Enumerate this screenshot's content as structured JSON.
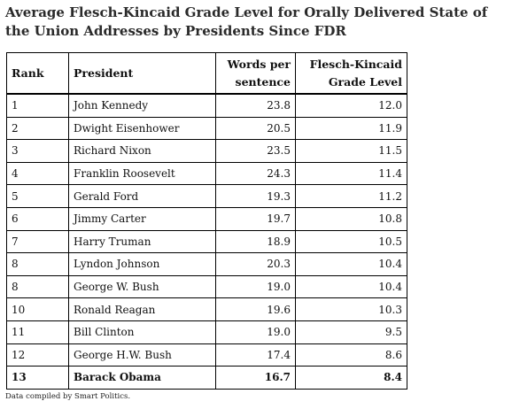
{
  "title": "Average Flesch-Kincaid Grade Level for Orally Delivered State of the Union Addresses by Presidents Since FDR",
  "headers": {
    "rank": "Rank",
    "president": "President",
    "words": "Words per sentence",
    "fk": "Flesch-Kincaid Grade Level"
  },
  "rows": [
    {
      "rank": "1",
      "president": "John Kennedy",
      "words": "23.8",
      "fk": "12.0"
    },
    {
      "rank": "2",
      "president": "Dwight Eisenhower",
      "words": "20.5",
      "fk": "11.9"
    },
    {
      "rank": "3",
      "president": "Richard Nixon",
      "words": "23.5",
      "fk": "11.5"
    },
    {
      "rank": "4",
      "president": "Franklin Roosevelt",
      "words": "24.3",
      "fk": "11.4"
    },
    {
      "rank": "5",
      "president": "Gerald Ford",
      "words": "19.3",
      "fk": "11.2"
    },
    {
      "rank": "6",
      "president": "Jimmy Carter",
      "words": "19.7",
      "fk": "10.8"
    },
    {
      "rank": "7",
      "president": "Harry Truman",
      "words": "18.9",
      "fk": "10.5"
    },
    {
      "rank": "8",
      "president": "Lyndon Johnson",
      "words": "20.3",
      "fk": "10.4"
    },
    {
      "rank": "8",
      "president": "George W. Bush",
      "words": "19.0",
      "fk": "10.4"
    },
    {
      "rank": "10",
      "president": "Ronald Reagan",
      "words": "19.6",
      "fk": "10.3"
    },
    {
      "rank": "11",
      "president": "Bill Clinton",
      "words": "19.0",
      "fk": "9.5"
    },
    {
      "rank": "12",
      "president": "George H.W. Bush",
      "words": "17.4",
      "fk": "8.6"
    },
    {
      "rank": "13",
      "president": "Barack Obama",
      "words": "16.7",
      "fk": "8.4",
      "highlight": true
    }
  ],
  "footnote": "Data compiled by Smart Politics."
}
